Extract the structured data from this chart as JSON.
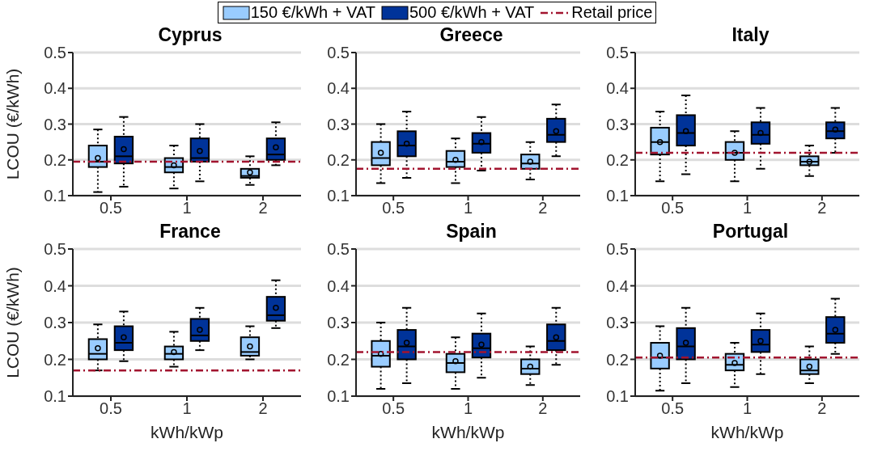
{
  "chart_data": [
    {
      "type": "box",
      "title": "Cyprus",
      "ylabel": "LCOU (€/kWh)",
      "categories": [
        "0.5",
        "1",
        "2"
      ],
      "ylim": [
        0.1,
        0.5
      ],
      "yticks": [
        0.1,
        0.2,
        0.3,
        0.4,
        0.5
      ],
      "grid": "y",
      "legend": "top",
      "series": [
        {
          "name": "150 €/kWh + VAT",
          "color": "#99ccff",
          "boxes": [
            {
              "low": 0.11,
              "q1": 0.18,
              "median": 0.195,
              "q3": 0.24,
              "high": 0.285,
              "mean": 0.205
            },
            {
              "low": 0.12,
              "q1": 0.165,
              "median": 0.18,
              "q3": 0.205,
              "high": 0.24,
              "mean": 0.185
            },
            {
              "low": 0.13,
              "q1": 0.15,
              "median": 0.155,
              "q3": 0.175,
              "high": 0.21,
              "mean": 0.165
            }
          ]
        },
        {
          "name": "500 €/kWh + VAT",
          "color": "#003399",
          "boxes": [
            {
              "low": 0.125,
              "q1": 0.19,
              "median": 0.21,
              "q3": 0.265,
              "high": 0.32,
              "mean": 0.23
            },
            {
              "low": 0.14,
              "q1": 0.195,
              "median": 0.205,
              "q3": 0.26,
              "high": 0.3,
              "mean": 0.225
            },
            {
              "low": 0.185,
              "q1": 0.2,
              "median": 0.215,
              "q3": 0.26,
              "high": 0.305,
              "mean": 0.235
            }
          ]
        }
      ],
      "ref_lines": [
        {
          "axis": "y",
          "value": 0.195,
          "label": "Retail price",
          "color": "#a2142f",
          "line_style": "dashdot"
        }
      ]
    },
    {
      "type": "box",
      "title": "Greece",
      "categories": [
        "0.5",
        "1",
        "2"
      ],
      "ylim": [
        0.1,
        0.5
      ],
      "yticks": [
        0.1,
        0.2,
        0.3,
        0.4,
        0.5
      ],
      "grid": "y",
      "series": [
        {
          "color": "#99ccff",
          "boxes": [
            {
              "low": 0.135,
              "q1": 0.185,
              "median": 0.205,
              "q3": 0.25,
              "high": 0.3,
              "mean": 0.22
            },
            {
              "low": 0.135,
              "q1": 0.18,
              "median": 0.195,
              "q3": 0.225,
              "high": 0.26,
              "mean": 0.2
            },
            {
              "low": 0.145,
              "q1": 0.175,
              "median": 0.19,
              "q3": 0.215,
              "high": 0.25,
              "mean": 0.195
            }
          ]
        },
        {
          "color": "#003399",
          "boxes": [
            {
              "low": 0.15,
              "q1": 0.21,
              "median": 0.24,
              "q3": 0.28,
              "high": 0.335,
              "mean": 0.245
            },
            {
              "low": 0.17,
              "q1": 0.22,
              "median": 0.245,
              "q3": 0.275,
              "high": 0.32,
              "mean": 0.25
            },
            {
              "low": 0.21,
              "q1": 0.25,
              "median": 0.27,
              "q3": 0.315,
              "high": 0.355,
              "mean": 0.28
            }
          ]
        }
      ],
      "ref_lines": [
        {
          "axis": "y",
          "value": 0.175,
          "color": "#a2142f",
          "line_style": "dashdot"
        }
      ]
    },
    {
      "type": "box",
      "title": "Italy",
      "categories": [
        "0.5",
        "1",
        "2"
      ],
      "ylim": [
        0.1,
        0.5
      ],
      "yticks": [
        0.1,
        0.2,
        0.3,
        0.4,
        0.5
      ],
      "grid": "y",
      "series": [
        {
          "color": "#99ccff",
          "boxes": [
            {
              "low": 0.14,
              "q1": 0.215,
              "median": 0.25,
              "q3": 0.29,
              "high": 0.335,
              "mean": 0.25
            },
            {
              "low": 0.14,
              "q1": 0.2,
              "median": 0.22,
              "q3": 0.25,
              "high": 0.28,
              "mean": 0.22
            },
            {
              "low": 0.155,
              "q1": 0.185,
              "median": 0.195,
              "q3": 0.21,
              "high": 0.24,
              "mean": 0.195
            }
          ]
        },
        {
          "color": "#003399",
          "boxes": [
            {
              "low": 0.16,
              "q1": 0.24,
              "median": 0.275,
              "q3": 0.325,
              "high": 0.38,
              "mean": 0.28
            },
            {
              "low": 0.175,
              "q1": 0.245,
              "median": 0.27,
              "q3": 0.305,
              "high": 0.345,
              "mean": 0.275
            },
            {
              "low": 0.22,
              "q1": 0.26,
              "median": 0.28,
              "q3": 0.305,
              "high": 0.345,
              "mean": 0.285
            }
          ]
        }
      ],
      "ref_lines": [
        {
          "axis": "y",
          "value": 0.22,
          "color": "#a2142f",
          "line_style": "dashdot"
        }
      ]
    },
    {
      "type": "box",
      "title": "France",
      "ylabel": "LCOU (€/kWh)",
      "xlabel": "kWh/kWp",
      "categories": [
        "0.5",
        "1",
        "2"
      ],
      "ylim": [
        0.1,
        0.5
      ],
      "yticks": [
        0.1,
        0.2,
        0.3,
        0.4,
        0.5
      ],
      "grid": "y",
      "series": [
        {
          "color": "#99ccff",
          "boxes": [
            {
              "low": 0.17,
              "q1": 0.2,
              "median": 0.215,
              "q3": 0.255,
              "high": 0.295,
              "mean": 0.23
            },
            {
              "low": 0.18,
              "q1": 0.2,
              "median": 0.215,
              "q3": 0.235,
              "high": 0.275,
              "mean": 0.22
            },
            {
              "low": 0.2,
              "q1": 0.21,
              "median": 0.22,
              "q3": 0.26,
              "high": 0.29,
              "mean": 0.235
            }
          ]
        },
        {
          "color": "#003399",
          "boxes": [
            {
              "low": 0.195,
              "q1": 0.225,
              "median": 0.245,
              "q3": 0.29,
              "high": 0.33,
              "mean": 0.26
            },
            {
              "low": 0.225,
              "q1": 0.25,
              "median": 0.265,
              "q3": 0.31,
              "high": 0.34,
              "mean": 0.28
            },
            {
              "low": 0.285,
              "q1": 0.305,
              "median": 0.32,
              "q3": 0.37,
              "high": 0.415,
              "mean": 0.34
            }
          ]
        }
      ],
      "ref_lines": [
        {
          "axis": "y",
          "value": 0.17,
          "color": "#a2142f",
          "line_style": "dashdot"
        }
      ]
    },
    {
      "type": "box",
      "title": "Spain",
      "xlabel": "kWh/kWp",
      "categories": [
        "0.5",
        "1",
        "2"
      ],
      "ylim": [
        0.1,
        0.5
      ],
      "yticks": [
        0.1,
        0.2,
        0.3,
        0.4,
        0.5
      ],
      "grid": "y",
      "series": [
        {
          "color": "#99ccff",
          "boxes": [
            {
              "low": 0.12,
              "q1": 0.18,
              "median": 0.21,
              "q3": 0.25,
              "high": 0.3,
              "mean": 0.215
            },
            {
              "low": 0.12,
              "q1": 0.165,
              "median": 0.19,
              "q3": 0.215,
              "high": 0.26,
              "mean": 0.195
            },
            {
              "low": 0.13,
              "q1": 0.16,
              "median": 0.175,
              "q3": 0.2,
              "high": 0.235,
              "mean": 0.18
            }
          ]
        },
        {
          "color": "#003399",
          "boxes": [
            {
              "low": 0.135,
              "q1": 0.2,
              "median": 0.235,
              "q3": 0.28,
              "high": 0.34,
              "mean": 0.245
            },
            {
              "low": 0.15,
              "q1": 0.205,
              "median": 0.23,
              "q3": 0.27,
              "high": 0.325,
              "mean": 0.24
            },
            {
              "low": 0.185,
              "q1": 0.225,
              "median": 0.25,
              "q3": 0.295,
              "high": 0.34,
              "mean": 0.26
            }
          ]
        }
      ],
      "ref_lines": [
        {
          "axis": "y",
          "value": 0.22,
          "color": "#a2142f",
          "line_style": "dashdot"
        }
      ]
    },
    {
      "type": "box",
      "title": "Portugal",
      "xlabel": "kWh/kWp",
      "categories": [
        "0.5",
        "1",
        "2"
      ],
      "ylim": [
        0.1,
        0.5
      ],
      "yticks": [
        0.1,
        0.2,
        0.3,
        0.4,
        0.5
      ],
      "grid": "y",
      "series": [
        {
          "color": "#99ccff",
          "boxes": [
            {
              "low": 0.115,
              "q1": 0.175,
              "median": 0.205,
              "q3": 0.245,
              "high": 0.29,
              "mean": 0.21
            },
            {
              "low": 0.125,
              "q1": 0.17,
              "median": 0.185,
              "q3": 0.215,
              "high": 0.245,
              "mean": 0.19
            },
            {
              "low": 0.135,
              "q1": 0.16,
              "median": 0.17,
              "q3": 0.2,
              "high": 0.235,
              "mean": 0.18
            }
          ]
        },
        {
          "color": "#003399",
          "boxes": [
            {
              "low": 0.135,
              "q1": 0.2,
              "median": 0.235,
              "q3": 0.285,
              "high": 0.34,
              "mean": 0.245
            },
            {
              "low": 0.16,
              "q1": 0.22,
              "median": 0.24,
              "q3": 0.28,
              "high": 0.325,
              "mean": 0.25
            },
            {
              "low": 0.215,
              "q1": 0.245,
              "median": 0.27,
              "q3": 0.315,
              "high": 0.365,
              "mean": 0.28
            }
          ]
        }
      ],
      "ref_lines": [
        {
          "axis": "y",
          "value": 0.205,
          "color": "#a2142f",
          "line_style": "dashdot"
        }
      ]
    }
  ]
}
